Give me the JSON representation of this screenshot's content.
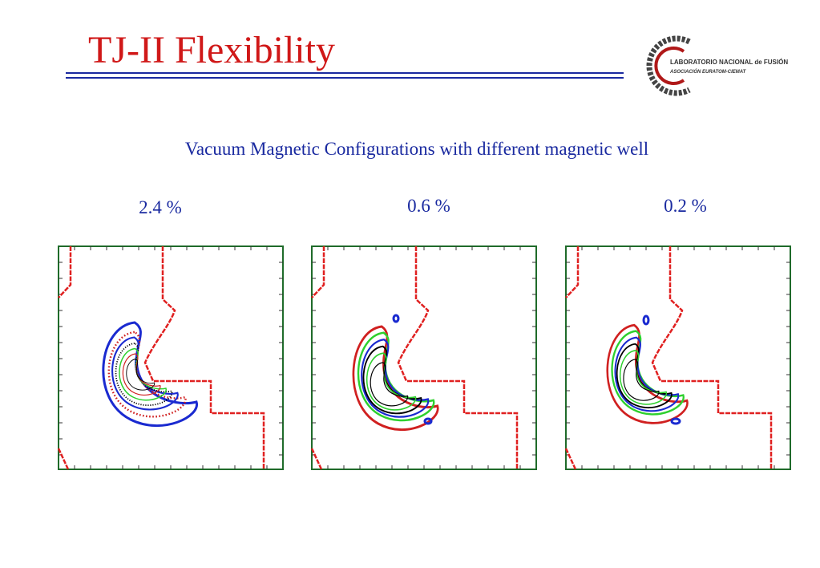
{
  "header": {
    "title": "TJ-II Flexibility",
    "logo": {
      "line1": "LABORATORIO NACIONAL de FUSIÓN",
      "line2": "ASOCIACIÓN EURATOM-CIEMAT"
    }
  },
  "subtitle": "Vacuum Magnetic Configurations with different magnetic well",
  "panels": [
    {
      "label": "2.4 %"
    },
    {
      "label": "0.6 %"
    },
    {
      "label": "0.2 %"
    }
  ]
}
